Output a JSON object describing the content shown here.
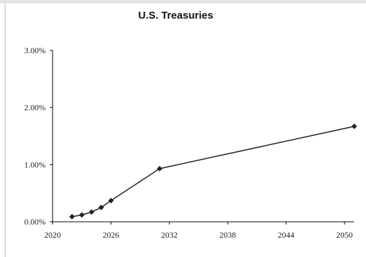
{
  "chart_data": {
    "type": "line",
    "title": "U.S. Treasuries",
    "xlabel": "",
    "ylabel": "",
    "xlim": [
      2020,
      2051
    ],
    "ylim": [
      0,
      3
    ],
    "x_ticks": [
      "2020",
      "2026",
      "2032",
      "2038",
      "2044",
      "2050"
    ],
    "y_ticks": [
      "0.00%",
      "1.00%",
      "2.00%",
      "3.00%"
    ],
    "grid": false,
    "legend": "none",
    "series": [
      {
        "x": [
          2022,
          2023,
          2024,
          2025,
          2026,
          2031,
          2051
        ],
        "values": [
          0.09,
          0.12,
          0.17,
          0.25,
          0.37,
          0.93,
          1.67
        ],
        "color": "#222222",
        "marker": "diamond"
      }
    ]
  }
}
